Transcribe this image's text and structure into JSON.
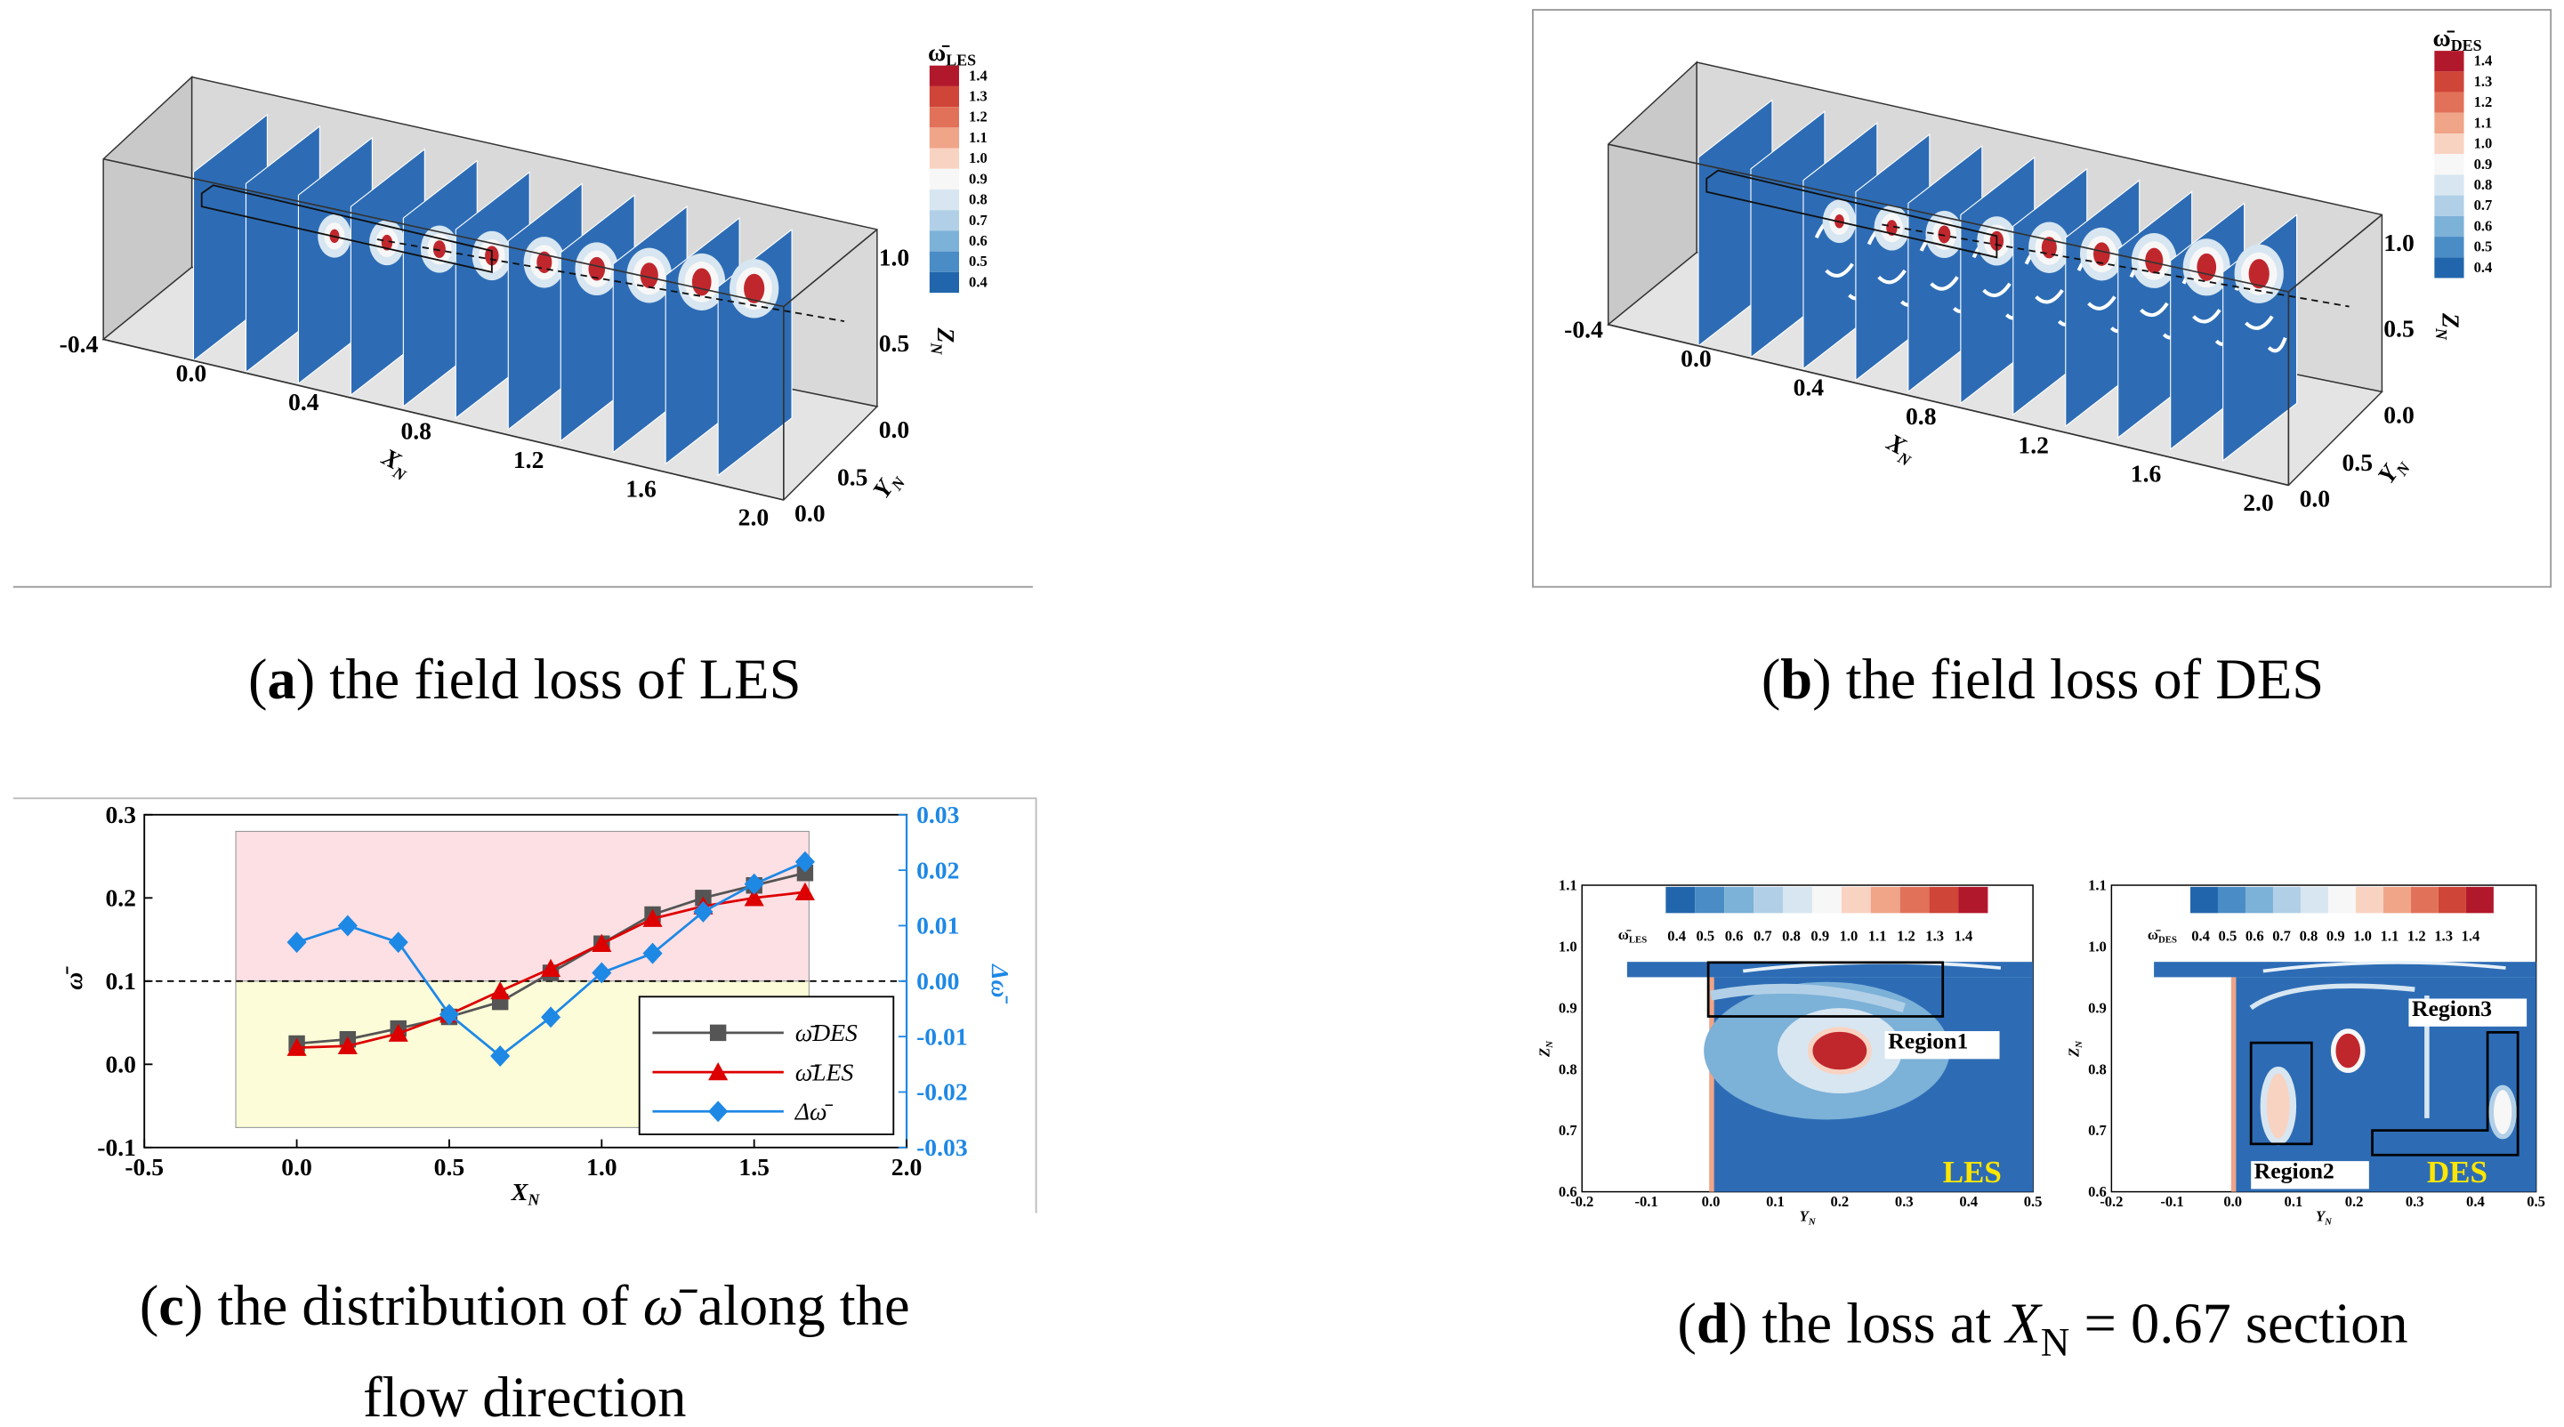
{
  "captions": [
    [
      "(",
      "a",
      ") the field loss of LES"
    ],
    [
      "(",
      "b",
      ") the field loss of DES"
    ],
    [
      "(",
      "c",
      ") the distribution of ",
      "ω̄",
      " along the",
      "flow direction"
    ],
    [
      "(",
      "d",
      ") the loss at ",
      "X",
      "N",
      " = 0.67 section"
    ]
  ],
  "fields": [
    {
      "colorbar": {
        "symbol": "ω̄",
        "sub": "LES",
        "labels": [
          "1.4",
          "1.3",
          "1.2",
          "1.1",
          "1.0",
          "0.9",
          "0.8",
          "0.7",
          "0.6",
          "0.5",
          "0.4"
        ]
      },
      "xticks": [
        "-0.4",
        "0.0",
        "0.4",
        "0.8",
        "1.2",
        "1.6",
        "2.0"
      ],
      "yticks": [
        "0.0",
        "0.5"
      ],
      "zticks": [
        "0.0",
        "0.5",
        "1.0"
      ],
      "xlabel": [
        "X",
        "N"
      ],
      "ylabel": [
        "Y",
        "N"
      ],
      "zlabel": [
        "Z",
        "N"
      ]
    },
    {
      "colorbar": {
        "symbol": "ω̄",
        "sub": "DES",
        "labels": [
          "1.4",
          "1.3",
          "1.2",
          "1.1",
          "1.0",
          "0.9",
          "0.8",
          "0.7",
          "0.6",
          "0.5",
          "0.4"
        ]
      },
      "xticks": [
        "-0.4",
        "0.0",
        "0.4",
        "0.8",
        "1.2",
        "1.6",
        "2.0"
      ],
      "yticks": [
        "0.0",
        "0.5"
      ],
      "zticks": [
        "0.0",
        "0.5",
        "1.0"
      ],
      "xlabel": [
        "X",
        "N"
      ],
      "ylabel": [
        "Y",
        "N"
      ],
      "zlabel": [
        "Z",
        "N"
      ]
    }
  ],
  "sections": {
    "yticks": [
      "0.6",
      "0.7",
      "0.8",
      "0.9",
      "1.0",
      "1.1"
    ],
    "xticks": [
      "-0.2",
      "-0.1",
      "0.0",
      "0.1",
      "0.2",
      "0.3",
      "0.4",
      "0.5"
    ],
    "ylabel": [
      "Z",
      "N"
    ],
    "xlabel": [
      "Y",
      "N"
    ],
    "plots": [
      {
        "colorbar": {
          "symbol": "ω̄",
          "sub": "LES",
          "labels": [
            "0.4",
            "0.5",
            "0.6",
            "0.7",
            "0.8",
            "0.9",
            "1.0",
            "1.1",
            "1.2",
            "1.3",
            "1.4"
          ]
        },
        "tag": "LES",
        "regions": [
          "Region1"
        ]
      },
      {
        "colorbar": {
          "symbol": "ω̄",
          "sub": "DES",
          "labels": [
            "0.4",
            "0.5",
            "0.6",
            "0.7",
            "0.8",
            "0.9",
            "1.0",
            "1.1",
            "1.2",
            "1.3",
            "1.4"
          ]
        },
        "tag": "DES",
        "regions": [
          "Region2",
          "Region3"
        ]
      }
    ]
  },
  "chart_data": {
    "type": "line",
    "x": [
      0,
      0.167,
      0.333,
      0.5,
      0.667,
      0.833,
      1,
      1.167,
      1.333,
      1.5,
      1.667
    ],
    "series": [
      {
        "name": "ω̄DES",
        "color": "#555555",
        "marker": "square",
        "values": [
          0.025,
          0.03,
          0.043,
          0.057,
          0.075,
          0.11,
          0.145,
          0.18,
          0.2,
          0.215,
          0.23
        ]
      },
      {
        "name": "ω̄LES",
        "color": "#dd0000",
        "marker": "triangle",
        "values": [
          0.02,
          0.022,
          0.037,
          0.06,
          0.088,
          0.115,
          0.145,
          0.175,
          0.19,
          0.2,
          0.207
        ]
      },
      {
        "name": "Δω̄",
        "color": "#1e88e5",
        "marker": "diamond",
        "axis": "y2",
        "values": [
          0.007,
          0.01,
          0.007,
          -0.006,
          -0.0135,
          -0.0065,
          0.0015,
          0.005,
          0.0125,
          0.0175,
          0.0215
        ]
      }
    ],
    "xlim": [
      -0.5,
      2.0
    ],
    "xticks": [
      -0.5,
      {
        "value": 0,
        "label": "0.0"
      },
      0.5,
      {
        "value": 1,
        "label": "1.0"
      },
      1.5,
      {
        "value": 2,
        "label": "2.0"
      }
    ],
    "ylim": [
      -0.1,
      0.3
    ],
    "yticks": [
      -0.1,
      {
        "value": 0,
        "label": "0.0"
      },
      0.1,
      0.2,
      0.3
    ],
    "y2lim": [
      -0.03,
      0.03
    ],
    "y2ticks": [
      -0.03,
      -0.02,
      -0.01,
      {
        "value": 0,
        "label": "0.00"
      },
      0.01,
      0.02,
      0.03
    ],
    "xlabel": {
      "main": "X",
      "sub": "N"
    },
    "ylabel": "ω̄",
    "y2label": "Δω̄",
    "hline": 0.1,
    "legend": "lower right",
    "regions": [
      {
        "xlim": [
          -0.2,
          1.68
        ],
        "ylim": [
          0.1,
          0.28
        ],
        "color": "#fde0e3"
      },
      {
        "xlim": [
          -0.2,
          1.68
        ],
        "ylim": [
          -0.076,
          0.1
        ],
        "color": "#fdfcd8"
      }
    ]
  }
}
